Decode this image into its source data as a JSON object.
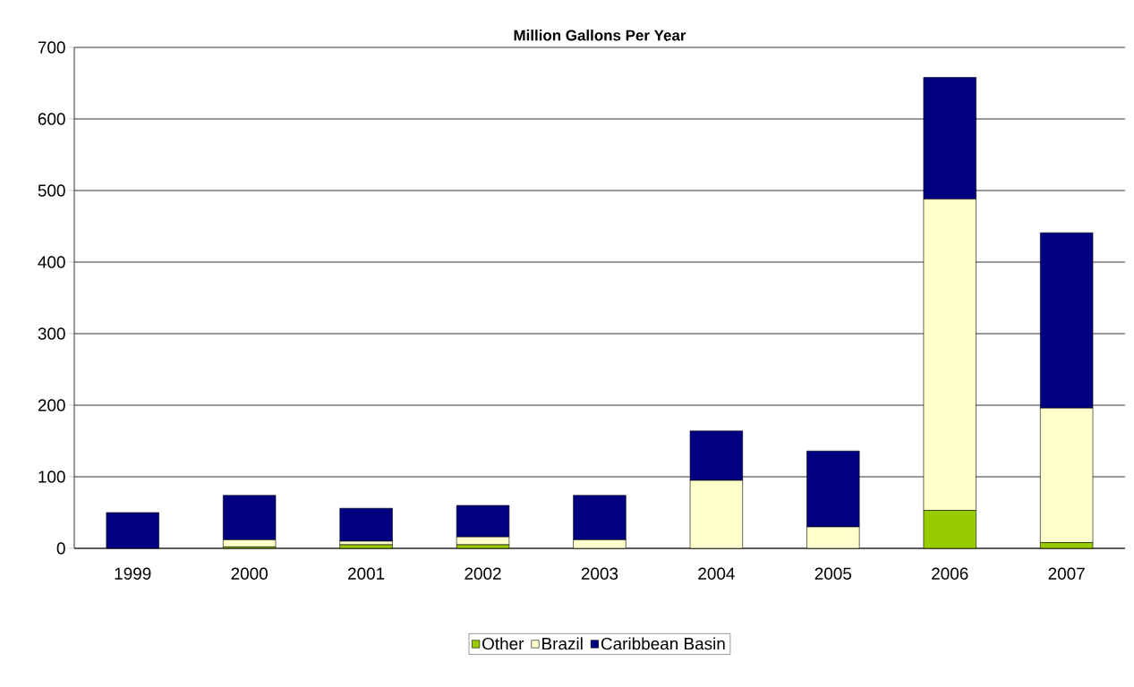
{
  "chart_data": {
    "type": "bar",
    "title": "Million Gallons Per Year",
    "stacked": true,
    "categories": [
      "1999",
      "2000",
      "2001",
      "2002",
      "2003",
      "2004",
      "2005",
      "2006",
      "2007"
    ],
    "series": [
      {
        "name": "Other",
        "color": "#99cc00",
        "values": [
          0,
          2,
          5,
          5,
          0,
          0,
          0,
          53,
          8
        ]
      },
      {
        "name": "Brazil",
        "color": "#ffffcc",
        "values": [
          0,
          10,
          5,
          11,
          12,
          95,
          30,
          435,
          188
        ]
      },
      {
        "name": "Caribbean Basin",
        "color": "#000080",
        "values": [
          50,
          62,
          46,
          44,
          62,
          69,
          106,
          170,
          245
        ]
      }
    ],
    "ylim": [
      0,
      700
    ],
    "yticks": [
      0,
      100,
      200,
      300,
      400,
      500,
      600,
      700
    ],
    "grid": "y",
    "legend": "bottom"
  }
}
